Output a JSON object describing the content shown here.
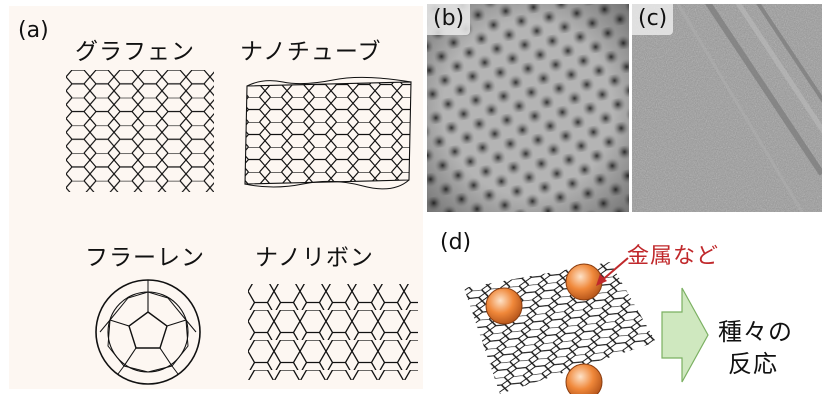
{
  "panel_a": {
    "label": "(a)",
    "graphene": "グラフェン",
    "nanotube": "ナノチューブ",
    "fullerene": "フラーレン",
    "nanoribbon": "ナノリボン"
  },
  "panel_b": {
    "label": "(b)"
  },
  "panel_c": {
    "label": "(c)"
  },
  "panel_d": {
    "label": "(d)",
    "metal_note": "金属など",
    "reaction_line1": "種々の",
    "reaction_line2": "反応"
  },
  "colors": {
    "metal_note": "#c0282b",
    "arrow_fill": "#cfe8bf",
    "sphere": "#f0883a",
    "panel_bg": "#fdf7f2"
  }
}
